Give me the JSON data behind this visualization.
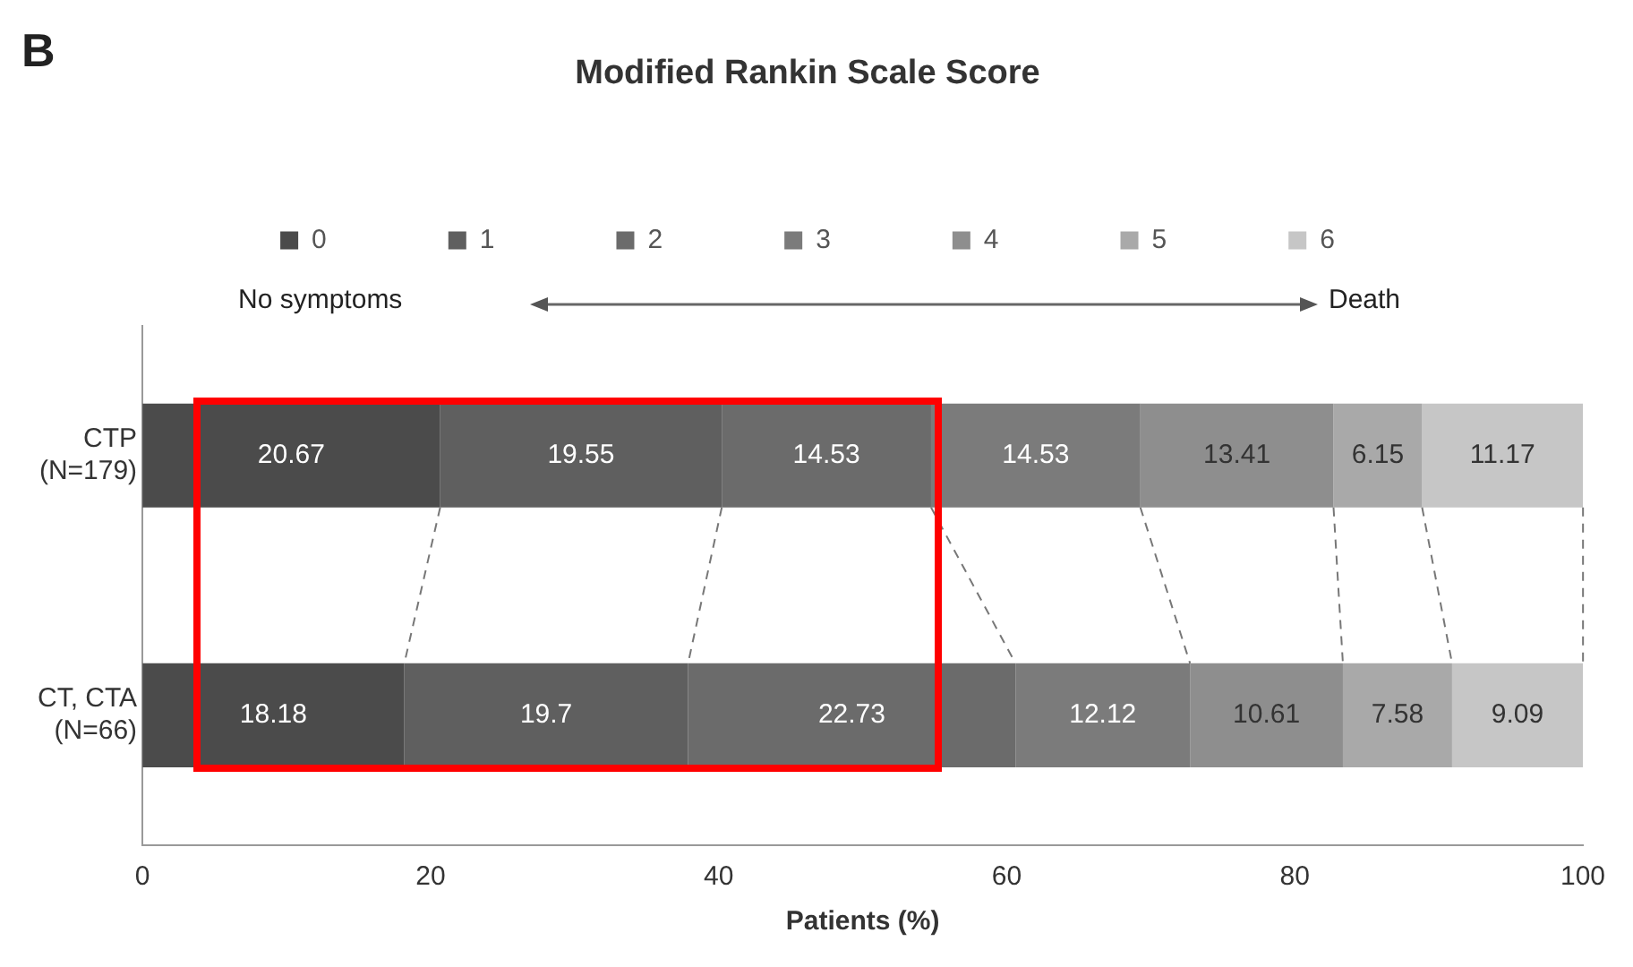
{
  "chart_data": {
    "type": "bar",
    "orientation": "horizontal",
    "stacked": true,
    "title": "Modified Rankin Scale Score",
    "xlabel": "Patients (%)",
    "categories": [
      "CTP (N=179)",
      "CT, CTA (N=66)"
    ],
    "series": [
      {
        "name": "0",
        "color": "#4b4b4b",
        "values": [
          20.67,
          18.18
        ]
      },
      {
        "name": "1",
        "color": "#5f5f5f",
        "values": [
          19.55,
          19.7
        ]
      },
      {
        "name": "2",
        "color": "#6b6b6b",
        "values": [
          14.53,
          22.73
        ]
      },
      {
        "name": "3",
        "color": "#7b7b7b",
        "values": [
          14.53,
          12.12
        ]
      },
      {
        "name": "4",
        "color": "#8e8e8e",
        "values": [
          13.41,
          10.61
        ]
      },
      {
        "name": "5",
        "color": "#a9a9a9",
        "values": [
          6.15,
          7.58
        ]
      },
      {
        "name": "6",
        "color": "#c6c6c6",
        "values": [
          11.17,
          9.09
        ]
      }
    ],
    "xlim": [
      0,
      100
    ],
    "xticks": [
      0,
      20,
      40,
      60,
      80,
      100
    ],
    "grid": false,
    "legend": "top",
    "data_labels": true,
    "annotations": [
      "B",
      "No symptoms",
      "Death"
    ]
  }
}
